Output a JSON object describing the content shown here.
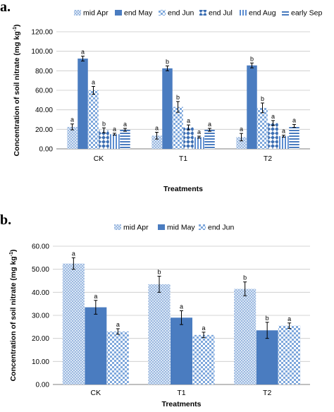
{
  "chart_data": [
    {
      "panel_label": "a.",
      "type": "bar",
      "xlabel": "Treatments",
      "ylabel": "Concentration of soil nitrate (mg kg",
      "ylabel_sup": "-1",
      "ylabel_close": ")",
      "ylim": [
        0,
        120
      ],
      "yticks": [
        "0.00",
        "20.00",
        "40.00",
        "60.00",
        "80.00",
        "100.00",
        "120.00"
      ],
      "ytick_values": [
        0,
        20,
        40,
        60,
        80,
        100,
        120
      ],
      "grid": true,
      "legend_position": "top",
      "categories": [
        "CK",
        "T1",
        "T2"
      ],
      "series": [
        {
          "name": "mid Apr",
          "values": [
            22.5,
            13.5,
            12.0
          ],
          "errors": [
            3.0,
            3.5,
            3.8
          ],
          "labels": [
            "a",
            "a",
            "a"
          ],
          "pattern": "p-dots",
          "color": "#a9c4e6"
        },
        {
          "name": "end May",
          "values": [
            92.5,
            82.5,
            85.5
          ],
          "errors": [
            2.5,
            2.5,
            2.5
          ],
          "labels": [
            "a",
            "b",
            "b"
          ],
          "pattern": "solid",
          "color": "#4a7cc0"
        },
        {
          "name": "end Jun",
          "values": [
            60.0,
            43.0,
            42.0
          ],
          "errors": [
            4.0,
            5.5,
            5.0
          ],
          "labels": [
            "a",
            "b",
            "b"
          ],
          "pattern": "p-check",
          "color": "#7fa8dc"
        },
        {
          "name": "end Jul",
          "values": [
            19.0,
            22.0,
            26.5
          ],
          "errors": [
            2.5,
            2.5,
            2.5
          ],
          "labels": [
            "b",
            "a",
            "a"
          ],
          "pattern": "p-diamond",
          "color": "#3d6fb3"
        },
        {
          "name": "end Aug",
          "values": [
            15.0,
            12.0,
            13.0
          ],
          "errors": [
            1.0,
            1.0,
            1.0
          ],
          "labels": [
            "a",
            "a",
            "a"
          ],
          "pattern": "p-vstripe",
          "color": "#5b8cd0"
        },
        {
          "name": "early Sep",
          "values": [
            19.5,
            19.5,
            23.5
          ],
          "errors": [
            1.5,
            1.5,
            1.5
          ],
          "labels": [
            "a",
            "a",
            "a"
          ],
          "pattern": "p-hstripe",
          "color": "#4a7cc0"
        }
      ]
    },
    {
      "panel_label": "b.",
      "type": "bar",
      "xlabel": "Treatments",
      "ylabel": "Concentration of soil nitrate (mg kg",
      "ylabel_sup": "-1",
      "ylabel_close": ")",
      "ylim": [
        0,
        60
      ],
      "yticks": [
        "0.00",
        "10.00",
        "20.00",
        "30.00",
        "40.00",
        "50.00",
        "60.00"
      ],
      "ytick_values": [
        0,
        10,
        20,
        30,
        40,
        50,
        60
      ],
      "grid": true,
      "legend_position": "top",
      "categories": [
        "CK",
        "T1",
        "T2"
      ],
      "series": [
        {
          "name": "mid Apr",
          "values": [
            52.5,
            43.5,
            41.5
          ],
          "errors": [
            2.5,
            3.5,
            3.0
          ],
          "labels": [
            "a",
            "b",
            "b"
          ],
          "pattern": "p-dots",
          "color": "#a9c4e6"
        },
        {
          "name": "mid May",
          "values": [
            33.5,
            29.0,
            23.5
          ],
          "errors": [
            3.0,
            3.0,
            3.5
          ],
          "labels": [
            "a",
            "a",
            "b"
          ],
          "pattern": "solid",
          "color": "#4a7cc0"
        },
        {
          "name": "end Jun",
          "values": [
            23.0,
            21.5,
            25.5
          ],
          "errors": [
            1.2,
            1.2,
            1.2
          ],
          "labels": [
            "a",
            "a",
            "a"
          ],
          "pattern": "p-check",
          "color": "#7fa8dc"
        }
      ]
    }
  ]
}
